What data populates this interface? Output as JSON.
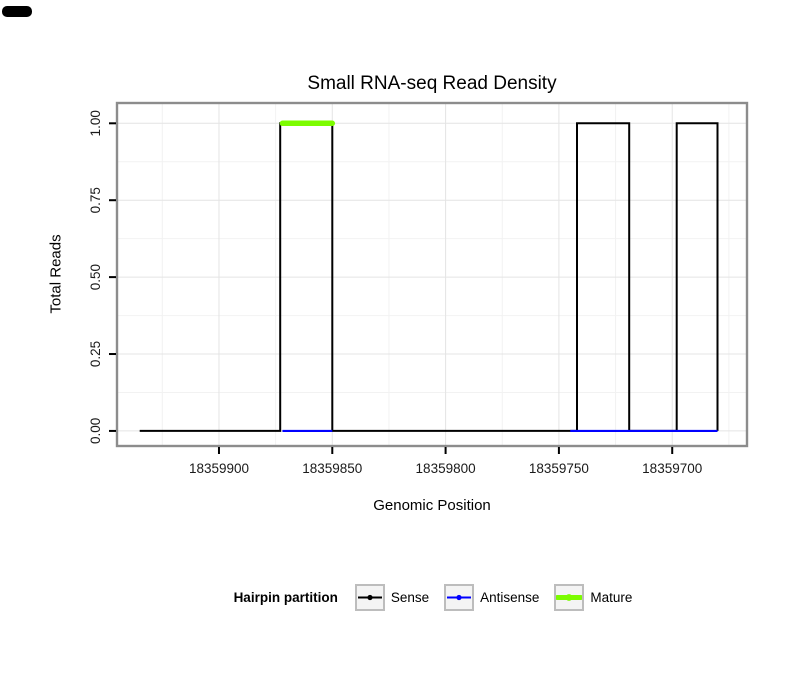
{
  "chart_data": {
    "type": "area",
    "title": "Small RNA-seq Read Density",
    "xlabel": "Genomic Position",
    "ylabel": "Total Reads",
    "colors": {
      "panel_background": "#FFFFFF",
      "panel_border": "#8C8C8C",
      "grid_major": "#E4E4E4",
      "grid_minor": "#F2F2F2",
      "axis_text": "#1A1A1A",
      "tick": "#000000"
    },
    "x_axis": {
      "reversed": true,
      "left_value": 18359945,
      "right_value": 18359667,
      "ticks": [
        {
          "value": 18359900,
          "label": "18359900"
        },
        {
          "value": 18359850,
          "label": "18359850"
        },
        {
          "value": 18359800,
          "label": "18359800"
        },
        {
          "value": 18359750,
          "label": "18359750"
        },
        {
          "value": 18359700,
          "label": "18359700"
        }
      ]
    },
    "y_axis": {
      "min": 0,
      "max": 1,
      "ticks": [
        {
          "value": 0,
          "label": "0.00"
        },
        {
          "value": 0.25,
          "label": "0.25"
        },
        {
          "value": 0.5,
          "label": "0.50"
        },
        {
          "value": 0.75,
          "label": "0.75"
        },
        {
          "value": 1,
          "label": "1.00"
        }
      ]
    },
    "series": [
      {
        "name": "Sense",
        "color": "#000000",
        "style": "step",
        "baseline_value": 0,
        "extent": {
          "start": 18359935,
          "end": 18359680
        },
        "peaks": [
          {
            "start": 18359873,
            "end": 18359850,
            "value": 1
          },
          {
            "start": 18359742,
            "end": 18359719,
            "value": 1
          },
          {
            "start": 18359698,
            "end": 18359680,
            "value": 1
          }
        ]
      },
      {
        "name": "Antisense",
        "color": "#0000FF",
        "style": "segments",
        "line_width": 2.2,
        "segments": [
          {
            "start": 18359872,
            "end": 18359850,
            "value": 0
          },
          {
            "start": 18359745,
            "end": 18359680,
            "value": 0
          }
        ]
      },
      {
        "name": "Mature",
        "color": "#7CFC00",
        "style": "segments",
        "line_width": 5.5,
        "segments": [
          {
            "start": 18359872,
            "end": 18359850,
            "value": 1
          }
        ]
      }
    ],
    "legend": {
      "title": "Hairpin partition",
      "entries": [
        {
          "label": "Sense",
          "color": "#000000",
          "line_width": 2
        },
        {
          "label": "Antisense",
          "color": "#0000FF",
          "line_width": 2
        },
        {
          "label": "Mature",
          "color": "#7CFC00",
          "line_width": 5
        }
      ]
    }
  }
}
